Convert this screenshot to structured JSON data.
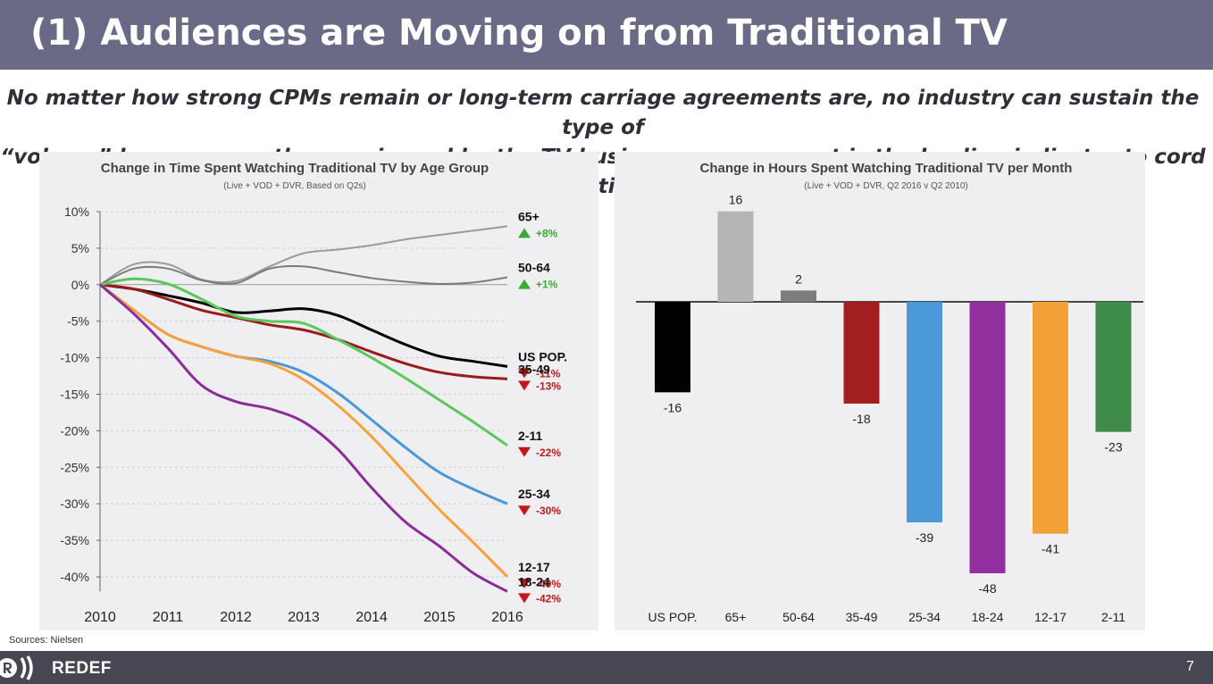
{
  "slide": {
    "title": "(1) Audiences are Moving on from Traditional TV",
    "subtitle_line1": "No matter how strong CPMs remain or long-term carriage agreements are, no industry can sustain the type of",
    "subtitle_line2": "“volume” losses currently experienced by the TV business; engagement is the leading indicator to cord cutting",
    "sources": "Sources: Nielsen",
    "brand": "REDEF",
    "page_number": "7"
  },
  "colors": {
    "title_bar": "#6a6a87",
    "footer": "#474754",
    "up": "#3aaa35",
    "down": "#c0191d"
  },
  "chart_data": [
    {
      "type": "line",
      "title": "Change in Time Spent Watching Traditional TV by Age Group",
      "subtitle": "(Live + VOD + DVR, Based on Q2s)",
      "x": [
        2010,
        2010.5,
        2011,
        2011.5,
        2012,
        2012.5,
        2013,
        2013.5,
        2014,
        2014.5,
        2015,
        2015.5,
        2016
      ],
      "xticks": [
        "2010",
        "2011",
        "2012",
        "2013",
        "2014",
        "2015",
        "2016"
      ],
      "yticks": [
        "10%",
        "5%",
        "0%",
        "-5%",
        "-10%",
        "-15%",
        "-20%",
        "-25%",
        "-30%",
        "-35%",
        "-40%"
      ],
      "ylim": [
        -42,
        10
      ],
      "xlim": [
        2010,
        2016
      ],
      "series": [
        {
          "name": "65+",
          "change": "+8%",
          "direction": "up",
          "color": "#9b9b9b",
          "width": 2,
          "values": [
            0,
            2.8,
            2.8,
            0.7,
            0.5,
            2.5,
            4.3,
            4.8,
            5.4,
            6.2,
            6.8,
            7.4,
            8
          ]
        },
        {
          "name": "50-64",
          "change": "+1%",
          "direction": "up",
          "color": "#7a7a7a",
          "width": 2,
          "values": [
            0,
            2.2,
            2.2,
            0.6,
            0.2,
            2.2,
            2.5,
            1.7,
            0.9,
            0.4,
            0.1,
            0.3,
            1
          ]
        },
        {
          "name": "US POP.",
          "change": "-11%",
          "direction": "down",
          "color": "#000000",
          "width": 3,
          "values": [
            0,
            -0.6,
            -1.5,
            -2.5,
            -3.8,
            -3.6,
            -3.3,
            -4.2,
            -6.2,
            -8.2,
            -9.8,
            -10.5,
            -11.2
          ]
        },
        {
          "name": "35-49",
          "change": "-13%",
          "direction": "down",
          "color": "#9a1b1b",
          "width": 3,
          "values": [
            0,
            -0.6,
            -2.0,
            -3.5,
            -4.5,
            -5.5,
            -6.2,
            -7.5,
            -9.2,
            -10.8,
            -12.0,
            -12.6,
            -12.9
          ]
        },
        {
          "name": "2-11",
          "change": "-22%",
          "direction": "down",
          "color": "#5ac85a",
          "width": 3,
          "values": [
            0,
            0.8,
            0.1,
            -2.0,
            -4.3,
            -5.0,
            -5.3,
            -7.5,
            -10.0,
            -12.8,
            -15.8,
            -18.8,
            -22
          ]
        },
        {
          "name": "25-34",
          "change": "-30%",
          "direction": "down",
          "color": "#4a98d8",
          "width": 3,
          "values": [
            0,
            -3.5,
            -6.8,
            -8.5,
            -9.8,
            -10.5,
            -12.0,
            -14.8,
            -18.5,
            -22.3,
            -25.7,
            -28.0,
            -30
          ]
        },
        {
          "name": "12-17",
          "change": "-40%",
          "direction": "down",
          "color": "#f5a23a",
          "width": 3,
          "values": [
            0,
            -3.5,
            -6.8,
            -8.5,
            -9.8,
            -10.8,
            -13.0,
            -16.5,
            -20.8,
            -25.8,
            -30.8,
            -35.3,
            -40
          ]
        },
        {
          "name": "18-24",
          "change": "-42%",
          "direction": "down",
          "color": "#8c2b9a",
          "width": 3,
          "values": [
            0,
            -4.0,
            -8.7,
            -13.8,
            -16.0,
            -17.0,
            -18.8,
            -22.5,
            -27.8,
            -32.5,
            -35.8,
            -39.5,
            -42
          ]
        }
      ]
    },
    {
      "type": "bar",
      "title": "Change in Hours Spent Watching Traditional TV per Month",
      "subtitle": "(Live + VOD + DVR, Q2 2016 v Q2 2010)",
      "categories": [
        "US POP.",
        "65+",
        "50-64",
        "35-49",
        "25-34",
        "18-24",
        "12-17",
        "2-11"
      ],
      "values": [
        -16,
        16,
        2,
        -18,
        -39,
        -48,
        -41,
        -23
      ],
      "value_labels": [
        "-16",
        "16",
        "2",
        "-18",
        "-39",
        "-48",
        "-41",
        "-23"
      ],
      "colors": [
        "#000000",
        "#b5b5b5",
        "#7d7d7d",
        "#a31f1f",
        "#4a98d8",
        "#922f9e",
        "#f2a136",
        "#3f8b4a"
      ],
      "ylim": [
        -48,
        16
      ]
    }
  ]
}
